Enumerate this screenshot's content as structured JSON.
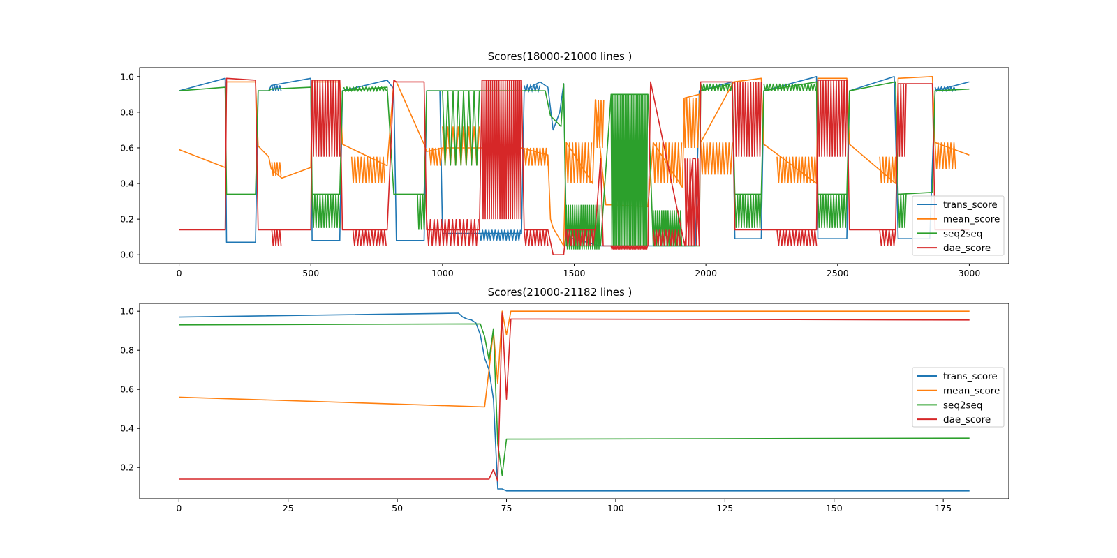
{
  "chart_data": [
    {
      "type": "line",
      "title": "Scores(18000-21000 lines )",
      "xlabel": "",
      "ylabel": "",
      "xlim": [
        -150,
        3150
      ],
      "ylim": [
        -0.05,
        1.05
      ],
      "xticks": [
        0,
        500,
        1000,
        1500,
        2000,
        2500,
        3000
      ],
      "yticks": [
        0.0,
        0.2,
        0.4,
        0.6,
        0.8,
        1.0
      ],
      "xtick_labels": [
        "0",
        "500",
        "1000",
        "1500",
        "2000",
        "2500",
        "3000"
      ],
      "ytick_labels": [
        "0.0",
        "0.2",
        "0.4",
        "0.6",
        "0.8",
        "1.0"
      ],
      "grid": false,
      "legend_position": "lower right",
      "series": [
        {
          "name": "trans_score",
          "color": "#1f77b4",
          "x": [
            0,
            175,
            180,
            290,
            300,
            340,
            350,
            500,
            505,
            610,
            620,
            790,
            815,
            825,
            930,
            940,
            990,
            1000,
            1140,
            1150,
            1300,
            1310,
            1370,
            1400,
            1420,
            1445,
            1460,
            1470,
            1600,
            1610,
            1770,
            1780,
            1920,
            1950,
            1960,
            1975,
            2100,
            2110,
            2210,
            2220,
            2420,
            2425,
            2535,
            2545,
            2715,
            2730,
            2780,
            2850,
            2870,
            3000
          ],
          "y": [
            0.92,
            0.99,
            0.07,
            0.07,
            0.92,
            0.92,
            0.95,
            0.99,
            0.08,
            0.08,
            0.92,
            0.98,
            0.93,
            0.08,
            0.08,
            0.92,
            0.92,
            0.12,
            0.12,
            0.12,
            0.12,
            0.92,
            0.97,
            0.94,
            0.7,
            0.8,
            0.96,
            0.1,
            0.05,
            0.05,
            0.05,
            0.05,
            0.05,
            0.05,
            0.05,
            0.92,
            0.97,
            0.09,
            0.09,
            0.92,
            1.0,
            0.09,
            0.09,
            0.92,
            1.0,
            0.09,
            0.09,
            0.09,
            0.92,
            0.97
          ]
        },
        {
          "name": "mean_score",
          "color": "#ff7f0e",
          "x": [
            0,
            175,
            180,
            290,
            300,
            340,
            350,
            390,
            500,
            505,
            610,
            620,
            790,
            815,
            825,
            930,
            940,
            1000,
            1140,
            1300,
            1400,
            1410,
            1420,
            1460,
            1470,
            1570,
            1580,
            1620,
            1640,
            1780,
            1800,
            1910,
            1920,
            1975,
            1980,
            2105,
            2210,
            2220,
            2420,
            2425,
            2535,
            2545,
            2720,
            2730,
            2860,
            2870,
            3000
          ],
          "y": [
            0.59,
            0.49,
            0.97,
            0.97,
            0.61,
            0.55,
            0.48,
            0.43,
            0.49,
            0.97,
            0.97,
            0.62,
            0.5,
            0.97,
            0.97,
            0.62,
            0.58,
            0.6,
            0.6,
            0.6,
            0.56,
            0.2,
            0.15,
            0.05,
            0.63,
            0.4,
            0.87,
            0.28,
            0.28,
            0.27,
            0.63,
            0.38,
            0.88,
            0.9,
            0.63,
            0.97,
            0.99,
            0.62,
            0.4,
            0.99,
            0.99,
            0.62,
            0.4,
            0.99,
            1.0,
            0.63,
            0.56
          ]
        },
        {
          "name": "seq2seq",
          "color": "#2ca02c",
          "x": [
            0,
            175,
            180,
            290,
            300,
            340,
            350,
            500,
            505,
            610,
            620,
            790,
            815,
            825,
            930,
            940,
            990,
            1000,
            1140,
            1300,
            1390,
            1410,
            1450,
            1460,
            1470,
            1600,
            1640,
            1780,
            1800,
            1910,
            1975,
            1980,
            2100,
            2110,
            2210,
            2220,
            2420,
            2425,
            2535,
            2545,
            2720,
            2730,
            2860,
            2870,
            3000
          ],
          "y": [
            0.92,
            0.94,
            0.34,
            0.34,
            0.92,
            0.92,
            0.93,
            0.94,
            0.34,
            0.34,
            0.92,
            0.94,
            0.34,
            0.34,
            0.34,
            0.92,
            0.92,
            0.92,
            0.92,
            0.92,
            0.92,
            0.78,
            0.72,
            0.96,
            0.05,
            0.05,
            0.9,
            0.9,
            0.05,
            0.05,
            0.05,
            0.92,
            0.96,
            0.34,
            0.34,
            0.92,
            0.97,
            0.34,
            0.34,
            0.92,
            0.97,
            0.34,
            0.35,
            0.92,
            0.93
          ]
        },
        {
          "name": "dae_score",
          "color": "#d62728",
          "x": [
            0,
            175,
            180,
            290,
            300,
            500,
            505,
            610,
            620,
            790,
            815,
            825,
            930,
            940,
            1000,
            1140,
            1150,
            1300,
            1310,
            1400,
            1420,
            1460,
            1470,
            1580,
            1600,
            1610,
            1640,
            1780,
            1790,
            1920,
            1950,
            1960,
            1975,
            1980,
            2100,
            2110,
            2210,
            2220,
            2420,
            2425,
            2535,
            2545,
            2720,
            2730,
            2860,
            2870,
            3000
          ],
          "y": [
            0.14,
            0.14,
            0.99,
            0.98,
            0.14,
            0.14,
            0.98,
            0.98,
            0.14,
            0.14,
            0.98,
            0.97,
            0.97,
            0.14,
            0.14,
            0.14,
            0.98,
            0.98,
            0.14,
            0.14,
            0.0,
            0.0,
            0.14,
            0.14,
            0.54,
            0.05,
            0.05,
            0.05,
            0.97,
            0.05,
            0.54,
            0.54,
            0.05,
            0.97,
            0.97,
            0.14,
            0.14,
            0.14,
            0.14,
            0.98,
            0.98,
            0.14,
            0.14,
            0.96,
            0.96,
            0.14,
            0.14
          ]
        }
      ],
      "oscillation_bands": [
        {
          "series": "mean_score",
          "x0": 352,
          "x1": 388,
          "low": 0.44,
          "high": 0.52,
          "step": 5
        },
        {
          "series": "dae_score",
          "x0": 352,
          "x1": 390,
          "low": 0.05,
          "high": 0.14,
          "step": 5
        },
        {
          "series": "trans_score",
          "x0": 352,
          "x1": 390,
          "low": 0.92,
          "high": 0.95,
          "step": 5
        },
        {
          "series": "dae_score",
          "x0": 505,
          "x1": 610,
          "low": 0.55,
          "high": 0.98,
          "step": 5
        },
        {
          "series": "seq2seq",
          "x0": 505,
          "x1": 610,
          "low": 0.15,
          "high": 0.34,
          "step": 5
        },
        {
          "series": "mean_score",
          "x0": 655,
          "x1": 785,
          "low": 0.4,
          "high": 0.55,
          "step": 6
        },
        {
          "series": "dae_score",
          "x0": 660,
          "x1": 790,
          "low": 0.05,
          "high": 0.14,
          "step": 6
        },
        {
          "series": "seq2seq",
          "x0": 625,
          "x1": 790,
          "low": 0.92,
          "high": 0.94,
          "step": 6
        },
        {
          "series": "seq2seq",
          "x0": 905,
          "x1": 935,
          "low": 0.14,
          "high": 0.34,
          "step": 5
        },
        {
          "series": "dae_score",
          "x0": 940,
          "x1": 1140,
          "low": 0.05,
          "high": 0.2,
          "step": 7
        },
        {
          "series": "mean_score",
          "x0": 950,
          "x1": 1000,
          "low": 0.5,
          "high": 0.6,
          "step": 6
        },
        {
          "series": "seq2seq",
          "x0": 1000,
          "x1": 1140,
          "low": 0.5,
          "high": 0.92,
          "step": 10
        },
        {
          "series": "mean_score",
          "x0": 1000,
          "x1": 1140,
          "low": 0.5,
          "high": 0.72,
          "step": 10
        },
        {
          "series": "trans_score",
          "x0": 1140,
          "x1": 1300,
          "low": 0.08,
          "high": 0.14,
          "step": 6
        },
        {
          "series": "dae_score",
          "x0": 1150,
          "x1": 1300,
          "low": 0.2,
          "high": 0.98,
          "step": 4
        },
        {
          "series": "mean_score",
          "x0": 1310,
          "x1": 1400,
          "low": 0.5,
          "high": 0.6,
          "step": 6
        },
        {
          "series": "dae_score",
          "x0": 1310,
          "x1": 1400,
          "low": 0.05,
          "high": 0.14,
          "step": 6
        },
        {
          "series": "trans_score",
          "x0": 1310,
          "x1": 1370,
          "low": 0.92,
          "high": 0.95,
          "step": 6
        },
        {
          "series": "seq2seq",
          "x0": 1470,
          "x1": 1600,
          "low": 0.03,
          "high": 0.28,
          "step": 4
        },
        {
          "series": "mean_score",
          "x0": 1470,
          "x1": 1570,
          "low": 0.4,
          "high": 0.63,
          "step": 6
        },
        {
          "series": "dae_score",
          "x0": 1470,
          "x1": 1580,
          "low": 0.05,
          "high": 0.14,
          "step": 6
        },
        {
          "series": "mean_score",
          "x0": 1582,
          "x1": 1615,
          "low": 0.6,
          "high": 0.87,
          "step": 5
        },
        {
          "series": "seq2seq",
          "x0": 1640,
          "x1": 1780,
          "low": 0.05,
          "high": 0.9,
          "step": 3
        },
        {
          "series": "dae_score",
          "x0": 1640,
          "x1": 1780,
          "low": 0.03,
          "high": 0.05,
          "step": 3
        },
        {
          "series": "seq2seq",
          "x0": 1800,
          "x1": 1910,
          "low": 0.05,
          "high": 0.25,
          "step": 4
        },
        {
          "series": "mean_score",
          "x0": 1800,
          "x1": 1910,
          "low": 0.4,
          "high": 0.63,
          "step": 6
        },
        {
          "series": "dae_score",
          "x0": 1800,
          "x1": 1910,
          "low": 0.05,
          "high": 0.14,
          "step": 6
        },
        {
          "series": "mean_score",
          "x0": 1915,
          "x1": 1975,
          "low": 0.6,
          "high": 0.88,
          "step": 6
        },
        {
          "series": "dae_score",
          "x0": 1920,
          "x1": 1975,
          "low": 0.05,
          "high": 0.54,
          "step": 5
        },
        {
          "series": "mean_score",
          "x0": 1980,
          "x1": 2100,
          "low": 0.45,
          "high": 0.63,
          "step": 6
        },
        {
          "series": "seq2seq",
          "x0": 1980,
          "x1": 2100,
          "low": 0.92,
          "high": 0.96,
          "step": 6
        },
        {
          "series": "dae_score",
          "x0": 2110,
          "x1": 2210,
          "low": 0.55,
          "high": 0.97,
          "step": 5
        },
        {
          "series": "seq2seq",
          "x0": 2110,
          "x1": 2210,
          "low": 0.15,
          "high": 0.34,
          "step": 5
        },
        {
          "series": "mean_score",
          "x0": 2270,
          "x1": 2420,
          "low": 0.4,
          "high": 0.55,
          "step": 6
        },
        {
          "series": "dae_score",
          "x0": 2270,
          "x1": 2420,
          "low": 0.05,
          "high": 0.14,
          "step": 6
        },
        {
          "series": "seq2seq",
          "x0": 2220,
          "x1": 2420,
          "low": 0.92,
          "high": 0.96,
          "step": 6
        },
        {
          "series": "dae_score",
          "x0": 2425,
          "x1": 2535,
          "low": 0.55,
          "high": 0.98,
          "step": 5
        },
        {
          "series": "seq2seq",
          "x0": 2425,
          "x1": 2535,
          "low": 0.15,
          "high": 0.34,
          "step": 5
        },
        {
          "series": "mean_score",
          "x0": 2660,
          "x1": 2720,
          "low": 0.4,
          "high": 0.55,
          "step": 6
        },
        {
          "series": "dae_score",
          "x0": 2660,
          "x1": 2720,
          "low": 0.05,
          "high": 0.14,
          "step": 6
        },
        {
          "series": "dae_score",
          "x0": 2730,
          "x1": 2760,
          "low": 0.55,
          "high": 0.96,
          "step": 5
        },
        {
          "series": "seq2seq",
          "x0": 2730,
          "x1": 2760,
          "low": 0.15,
          "high": 0.34,
          "step": 5
        },
        {
          "series": "mean_score",
          "x0": 2870,
          "x1": 2950,
          "low": 0.48,
          "high": 0.63,
          "step": 6
        },
        {
          "series": "trans_score",
          "x0": 2870,
          "x1": 2950,
          "low": 0.92,
          "high": 0.94,
          "step": 6
        }
      ]
    },
    {
      "type": "line",
      "title": "Scores(21000-21182 lines )",
      "xlabel": "",
      "ylabel": "",
      "xlim": [
        -9,
        190
      ],
      "ylim": [
        0.04,
        1.04
      ],
      "xticks": [
        0,
        25,
        50,
        75,
        100,
        125,
        150,
        175
      ],
      "yticks": [
        0.2,
        0.4,
        0.6,
        0.8,
        1.0
      ],
      "xtick_labels": [
        "0",
        "25",
        "50",
        "75",
        "100",
        "125",
        "150",
        "175"
      ],
      "ytick_labels": [
        "0.2",
        "0.4",
        "0.6",
        "0.8",
        "1.0"
      ],
      "grid": false,
      "legend_position": "center right",
      "series": [
        {
          "name": "trans_score",
          "color": "#1f77b4",
          "x": [
            0,
            64,
            65,
            66,
            67,
            68,
            69,
            70,
            71,
            72,
            73,
            74,
            75,
            181
          ],
          "y": [
            0.97,
            0.99,
            0.97,
            0.96,
            0.955,
            0.94,
            0.88,
            0.76,
            0.7,
            0.55,
            0.09,
            0.09,
            0.08,
            0.08
          ]
        },
        {
          "name": "mean_score",
          "color": "#ff7f0e",
          "x": [
            0,
            70,
            71,
            72,
            73,
            74,
            75,
            76,
            181
          ],
          "y": [
            0.56,
            0.51,
            0.7,
            0.9,
            0.63,
            1.0,
            0.88,
            1.0,
            1.0
          ]
        },
        {
          "name": "seq2seq",
          "color": "#2ca02c",
          "x": [
            0,
            69,
            70,
            71,
            72,
            73,
            74,
            75,
            76,
            181
          ],
          "y": [
            0.93,
            0.935,
            0.87,
            0.75,
            0.91,
            0.32,
            0.16,
            0.345,
            0.345,
            0.35
          ]
        },
        {
          "name": "dae_score",
          "color": "#d62728",
          "x": [
            0,
            71,
            72,
            73,
            74,
            75,
            76,
            82,
            181
          ],
          "y": [
            0.14,
            0.14,
            0.19,
            0.13,
            0.99,
            0.55,
            0.96,
            0.96,
            0.955
          ]
        }
      ]
    }
  ]
}
